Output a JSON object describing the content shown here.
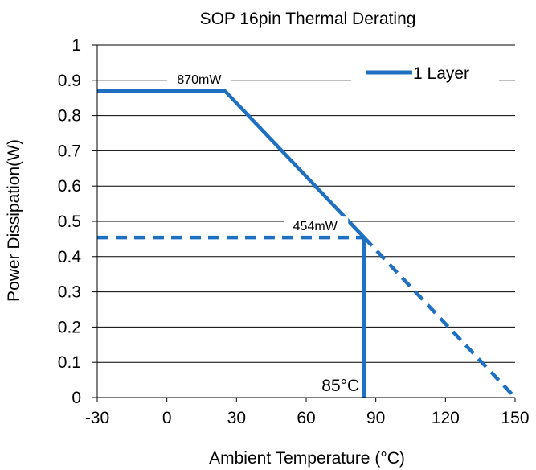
{
  "chart_data": {
    "type": "line",
    "title": "SOP 16pin Thermal Derating",
    "xlabel": "Ambient Temperature (°C)",
    "ylabel": "Power Dissipation(W)",
    "xlim": [
      -30,
      150
    ],
    "ylim": [
      0,
      1
    ],
    "xticks": [
      -30,
      0,
      30,
      60,
      90,
      120,
      150
    ],
    "yticks": [
      0,
      0.1,
      0.2,
      0.3,
      0.4,
      0.5,
      0.6,
      0.7,
      0.8,
      0.9,
      1
    ],
    "xtick_labels": [
      "-30",
      "0",
      "30",
      "60",
      "90",
      "120",
      "150"
    ],
    "ytick_labels": [
      "0",
      "0.1",
      "0.2",
      "0.3",
      "0.4",
      "0.5",
      "0.6",
      "0.7",
      "0.8",
      "0.9",
      "1"
    ],
    "grid": "horizontal",
    "legend_position": "top-right",
    "series": [
      {
        "name": "1 Layer",
        "color": "#1f70c1",
        "solid": {
          "x": [
            -30,
            25,
            85
          ],
          "y": [
            0.87,
            0.87,
            0.454
          ]
        },
        "dashed": {
          "x": [
            85,
            150
          ],
          "y": [
            0.454,
            0
          ]
        }
      }
    ],
    "reference_lines": [
      {
        "style": "dashed",
        "x": [
          -30,
          85
        ],
        "y": [
          0.454,
          0.454
        ]
      },
      {
        "style": "solid",
        "x": [
          85,
          85
        ],
        "y": [
          0.454,
          0
        ]
      }
    ],
    "annotations": [
      {
        "text": "870mW",
        "x": 25,
        "y": 0.87
      },
      {
        "text": "454mW",
        "x": 85,
        "y": 0.454
      },
      {
        "text": "85°C",
        "x": 85,
        "y": 0
      }
    ]
  }
}
